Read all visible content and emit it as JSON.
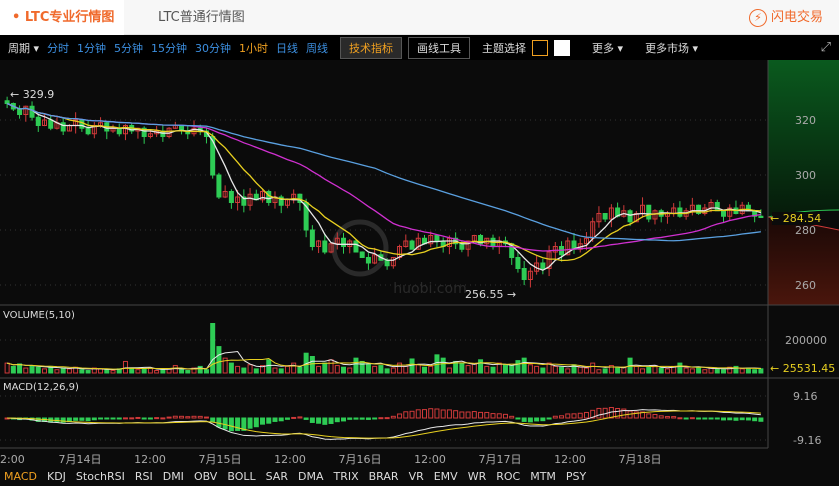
{
  "tabs": [
    {
      "label": "LTC专业行情图",
      "active": true
    },
    {
      "label": "LTC普通行情图",
      "active": false
    }
  ],
  "flash_trade": {
    "label": "闪电交易",
    "icon": "lightning-icon"
  },
  "toolbar": {
    "period_label": "周期",
    "intervals": [
      "分时",
      "1分钟",
      "5分钟",
      "15分钟",
      "30分钟",
      "1小时",
      "日线",
      "周线"
    ],
    "active_interval": "1小时",
    "tech_indicator": "技术指标",
    "draw_tools": "画线工具",
    "theme_label": "主题选择",
    "more": "更多",
    "more_markets": "更多市场"
  },
  "colors": {
    "up": "#d03a3a",
    "down": "#2ecc55",
    "ma5": "#e8e8e8",
    "ma10": "#e8d020",
    "ma30": "#d030d0",
    "ma60": "#5aa0e0",
    "accent": "#f06a2c"
  },
  "chart_data": {
    "type": "candlestick",
    "price_axis": [
      320,
      300,
      280,
      260
    ],
    "last_price": "284.54",
    "high_label": "329.9",
    "low_label": "256.55",
    "closes": [
      326,
      324,
      322,
      325,
      321,
      318,
      320,
      317,
      319,
      316,
      318,
      320,
      317,
      315,
      318,
      319,
      316,
      317,
      315,
      318,
      316,
      317,
      314,
      315,
      316,
      314,
      317,
      318,
      316,
      315,
      317,
      316,
      314,
      300,
      292,
      294,
      290,
      292,
      289,
      293,
      291,
      294,
      290,
      292,
      289,
      291,
      293,
      290,
      280,
      274,
      276,
      272,
      275,
      277,
      274,
      276,
      272,
      270,
      268,
      271,
      269,
      267,
      270,
      274,
      276,
      273,
      277,
      275,
      278,
      276,
      274,
      277,
      275,
      273,
      276,
      278,
      275,
      277,
      274,
      276,
      275,
      270,
      266,
      262,
      265,
      268,
      266,
      272,
      274,
      271,
      276,
      273,
      275,
      277,
      283,
      286,
      284,
      288,
      285,
      287,
      283,
      286,
      289,
      284,
      287,
      285,
      286,
      288,
      285,
      287,
      289,
      286,
      288,
      290,
      287,
      285,
      288,
      286,
      289,
      287,
      285,
      284.54
    ],
    "volume": {
      "label": "VOLUME(5,10)",
      "axis": [
        200000
      ],
      "last": "25531.45",
      "values": [
        60000,
        40000,
        55000,
        30000,
        45000,
        35000,
        25000,
        40000,
        20000,
        30000,
        25000,
        35000,
        20000,
        15000,
        30000,
        25000,
        20000,
        15000,
        25000,
        70000,
        30000,
        20000,
        25000,
        30000,
        15000,
        20000,
        25000,
        45000,
        20000,
        15000,
        30000,
        40000,
        20000,
        300000,
        160000,
        90000,
        60000,
        40000,
        30000,
        50000,
        25000,
        45000,
        80000,
        30000,
        25000,
        40000,
        60000,
        35000,
        120000,
        100000,
        40000,
        60000,
        80000,
        45000,
        35000,
        30000,
        90000,
        70000,
        55000,
        40000,
        45000,
        25000,
        30000,
        60000,
        40000,
        85000,
        50000,
        35000,
        40000,
        110000,
        90000,
        30000,
        70000,
        60000,
        45000,
        55000,
        80000,
        40000,
        35000,
        60000,
        50000,
        45000,
        75000,
        90000,
        50000,
        40000,
        30000,
        60000,
        40000,
        35000,
        25000,
        50000,
        35000,
        30000,
        60000,
        20000,
        25000,
        45000,
        30000,
        35000,
        90000,
        40000,
        25000,
        35000,
        45000,
        30000,
        25000,
        40000,
        60000,
        30000,
        25000,
        35000,
        20000,
        30000,
        25000,
        20000,
        35000,
        40000,
        25000,
        30000,
        20000,
        25531.45
      ]
    },
    "macd": {
      "label": "MACD(12,26,9)",
      "axis": [
        "9.16",
        "-9.16"
      ]
    },
    "x_labels": [
      "2:00",
      "7月14日",
      "12:00",
      "7月15日",
      "12:00",
      "7月16日",
      "12:00",
      "7月17日",
      "12:00",
      "7月18日"
    ]
  },
  "indicators": [
    "MACD",
    "KDJ",
    "StochRSI",
    "RSI",
    "DMI",
    "OBV",
    "BOLL",
    "SAR",
    "DMA",
    "TRIX",
    "BRAR",
    "VR",
    "EMV",
    "WR",
    "ROC",
    "MTM",
    "PSY"
  ],
  "active_indicator": "MACD",
  "watermark": "huobi.com"
}
